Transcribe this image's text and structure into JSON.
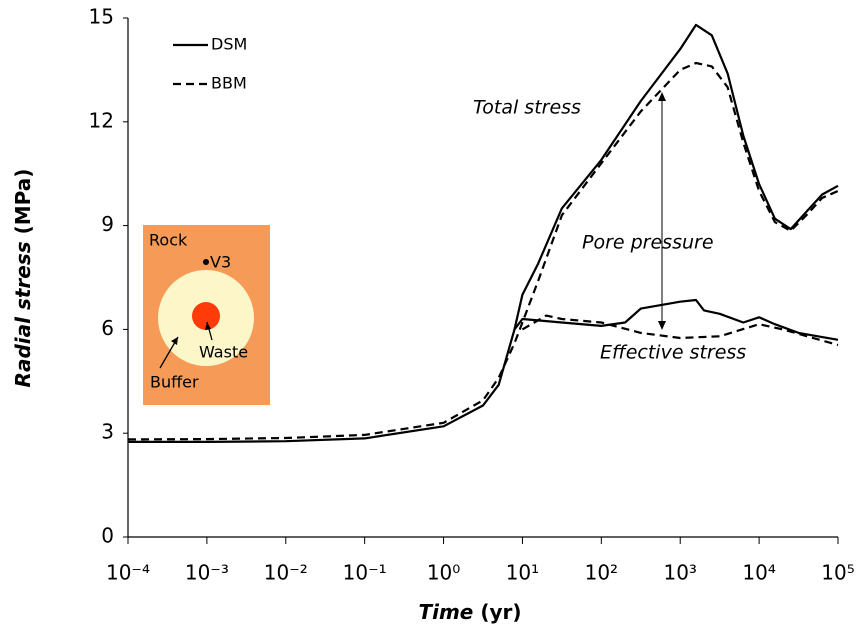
{
  "chart_data": {
    "type": "line",
    "ylabel": [
      "Radial stress",
      "(MPa)"
    ],
    "xlabel": [
      "Time",
      "(yr)"
    ],
    "xlog": true,
    "xlim": [
      0.0001,
      100000
    ],
    "xticks": [
      {
        "value": 0.0001,
        "label": "10⁻⁴"
      },
      {
        "value": 0.001,
        "label": "10⁻³"
      },
      {
        "value": 0.01,
        "label": "10⁻²"
      },
      {
        "value": 0.1,
        "label": "10⁻¹"
      },
      {
        "value": 1,
        "label": "10⁰"
      },
      {
        "value": 10,
        "label": "10¹"
      },
      {
        "value": 100,
        "label": "10²"
      },
      {
        "value": 1000,
        "label": "10³"
      },
      {
        "value": 10000,
        "label": "10⁴"
      },
      {
        "value": 100000,
        "label": "10⁵"
      }
    ],
    "ylim": [
      0,
      15
    ],
    "yticks": [
      0,
      3,
      6,
      9,
      12,
      15
    ],
    "series": [
      {
        "name": "DSM",
        "color": "#000000",
        "dash": false,
        "legend": true,
        "x": [
          0.0001,
          0.001,
          0.01,
          0.1,
          1,
          3.16,
          5,
          7.94,
          10,
          15.8,
          31.6,
          100,
          316,
          1000,
          1585,
          2512,
          3981,
          6310,
          10000,
          15849,
          25119,
          39811,
          63096,
          100000
        ],
        "values": [
          2.75,
          2.75,
          2.77,
          2.85,
          3.2,
          3.8,
          4.4,
          6.0,
          7.0,
          7.9,
          9.5,
          10.9,
          12.6,
          14.1,
          14.8,
          14.5,
          13.4,
          11.6,
          10.2,
          9.2,
          8.9,
          9.4,
          9.9,
          10.15
        ]
      },
      {
        "name": "BBM",
        "color": "#000000",
        "dash": true,
        "legend": true,
        "x": [
          0.0001,
          0.001,
          0.01,
          0.1,
          1,
          3.16,
          5,
          7.94,
          10,
          15.8,
          31.6,
          100,
          316,
          1000,
          1585,
          2512,
          3981,
          6310,
          10000,
          15849,
          25119,
          39811,
          63096,
          100000
        ],
        "values": [
          2.82,
          2.83,
          2.86,
          2.95,
          3.3,
          3.95,
          4.6,
          5.6,
          6.2,
          7.4,
          9.3,
          10.8,
          12.3,
          13.5,
          13.7,
          13.6,
          13.0,
          11.4,
          10.0,
          9.1,
          8.85,
          9.3,
          9.8,
          10.0
        ]
      },
      {
        "name": "DSM",
        "color": "#000000",
        "dash": false,
        "legend": false,
        "x": [
          7.94,
          10,
          31.6,
          100,
          200,
          316,
          1000,
          1585,
          2000,
          3162,
          6310,
          10000,
          15849,
          31623,
          100000
        ],
        "values": [
          6.0,
          6.3,
          6.2,
          6.1,
          6.2,
          6.6,
          6.8,
          6.85,
          6.55,
          6.45,
          6.2,
          6.35,
          6.15,
          5.9,
          5.7
        ]
      },
      {
        "name": "BBM",
        "color": "#000000",
        "dash": true,
        "legend": false,
        "x": [
          10,
          20,
          31.6,
          100,
          316,
          1000,
          3162,
          10000,
          19953,
          100000
        ],
        "values": [
          6.0,
          6.4,
          6.3,
          6.2,
          5.9,
          5.75,
          5.8,
          6.15,
          6.0,
          5.55
        ]
      }
    ],
    "annotations": [
      "Total stress",
      "Pore pressure",
      "Effective stress"
    ],
    "inset": {
      "labels": [
        "Rock",
        "V3",
        "Waste",
        "Buffer"
      ]
    }
  }
}
